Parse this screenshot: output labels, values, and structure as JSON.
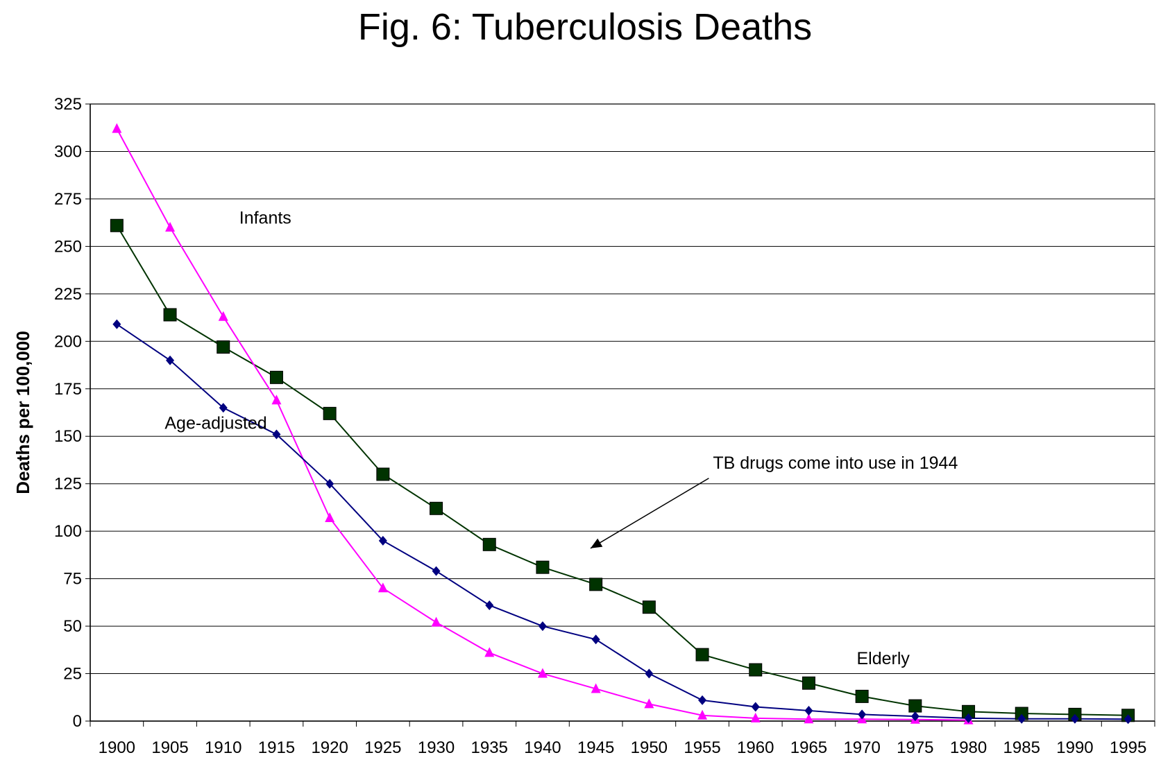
{
  "chart_data": {
    "type": "line",
    "title": "Fig. 6: Tuberculosis Deaths",
    "xlabel": "",
    "ylabel": "Deaths per 100,000",
    "x": [
      1900,
      1905,
      1910,
      1915,
      1920,
      1925,
      1930,
      1935,
      1940,
      1945,
      1950,
      1955,
      1960,
      1965,
      1970,
      1975,
      1980,
      1985,
      1990,
      1995
    ],
    "x_tick_labels": [
      "1900",
      "1905",
      "1910",
      "1915",
      "1920",
      "1925",
      "1930",
      "1935",
      "1940",
      "1945",
      "1950",
      "1955",
      "1960",
      "1965",
      "1970",
      "1975",
      "1980",
      "1985",
      "1990",
      "1995"
    ],
    "ylim": [
      0,
      325
    ],
    "y_ticks": [
      0,
      25,
      50,
      75,
      100,
      125,
      150,
      175,
      200,
      225,
      250,
      275,
      300,
      325
    ],
    "y_tick_labels": [
      "0",
      "25",
      "50",
      "75",
      "100",
      "125",
      "150",
      "175",
      "200",
      "225",
      "250",
      "275",
      "300",
      "325"
    ],
    "grid": "horizontal",
    "series": [
      {
        "name": "Elderly",
        "color": "#003300",
        "marker": "square",
        "values": [
          261,
          214,
          197,
          181,
          162,
          130,
          112,
          93,
          81,
          72,
          60,
          35,
          27,
          20,
          13,
          8,
          5,
          4,
          3.5,
          3
        ]
      },
      {
        "name": "Infants",
        "color": "#ff00ff",
        "marker": "triangle",
        "values": [
          312,
          260,
          213,
          169,
          107,
          70,
          52,
          36,
          25,
          17,
          9,
          3,
          1.5,
          1,
          1,
          0.8,
          0.5,
          null,
          null,
          null
        ]
      },
      {
        "name": "Age-adjusted",
        "color": "#000080",
        "marker": "diamond",
        "values": [
          209,
          190,
          165,
          151,
          125,
          95,
          79,
          61,
          50,
          43,
          25,
          11,
          7.5,
          5.5,
          3.5,
          2.5,
          1.5,
          1.2,
          1.2,
          1
        ]
      }
    ],
    "annotations": [
      {
        "text": "Infants",
        "x": 1911.5,
        "y": 262
      },
      {
        "text": "Age-adjusted",
        "x": 1904.5,
        "y": 154
      },
      {
        "text": "Elderly",
        "x": 1969.5,
        "y": 30
      },
      {
        "text": "TB drugs come into use in 1944",
        "x": 1956,
        "y": 133,
        "arrow_to": [
          1944.5,
          91
        ]
      }
    ]
  }
}
